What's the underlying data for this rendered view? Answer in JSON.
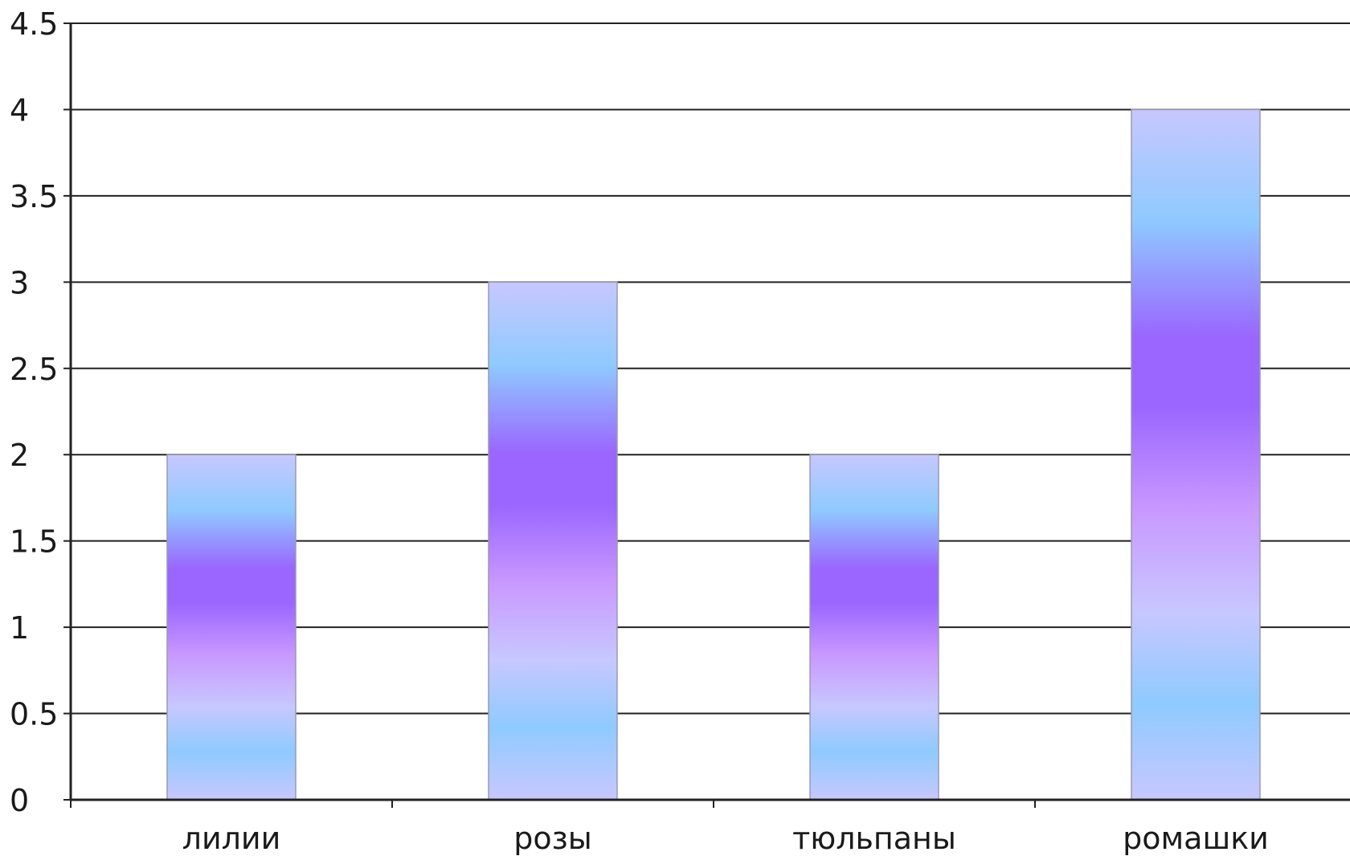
{
  "chart_data": {
    "type": "bar",
    "title": "",
    "xlabel": "",
    "ylabel": "",
    "categories": [
      "лилии",
      "розы",
      "тюльпаны",
      "ромашки"
    ],
    "values": [
      2,
      3,
      2,
      4
    ],
    "ylim": [
      0,
      4.5
    ],
    "yticks": [
      "0",
      "0.5",
      "1",
      "1.5",
      "2",
      "2.5",
      "3",
      "3.5",
      "4",
      "4.5"
    ],
    "grid": true,
    "legend": "none",
    "colors": {
      "grid": "#222222",
      "axis": "#222222",
      "bar_light": "#c7c8ff",
      "bar_blue": "#8fcaff",
      "bar_purple": "#9a66ff",
      "bar_lilac": "#c998ff",
      "bar_border": "#9a9ab0"
    }
  }
}
